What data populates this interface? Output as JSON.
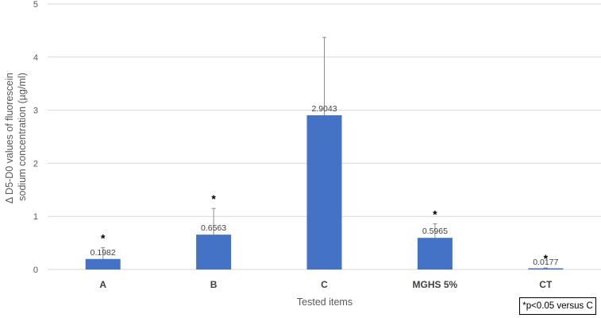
{
  "chart_data": {
    "type": "bar",
    "categories": [
      "A",
      "B",
      "C",
      "MGHS 5%",
      "CT"
    ],
    "values": [
      0.1982,
      0.6563,
      2.9043,
      0.5965,
      0.0177
    ],
    "data_labels": [
      "0.1982",
      "0.6563",
      "2.9043",
      "0.5965",
      "0.0177"
    ],
    "error_upper": [
      0.41,
      1.15,
      4.37,
      0.86,
      0.03
    ],
    "significance": [
      "*",
      "*",
      "",
      "*",
      "*"
    ],
    "xlabel": "Tested items",
    "ylabel_lines": [
      "Δ D5-D0 values of fluorescein",
      "sodium concentration (µg/ml)"
    ],
    "ylim": [
      0,
      5
    ],
    "yticks": [
      "0",
      "1",
      "2",
      "3",
      "4",
      "5"
    ],
    "grid": true,
    "bar_color": "#4472C4",
    "grid_color": "#D9D9D9",
    "annotation": "*p<0.05 versus C"
  }
}
